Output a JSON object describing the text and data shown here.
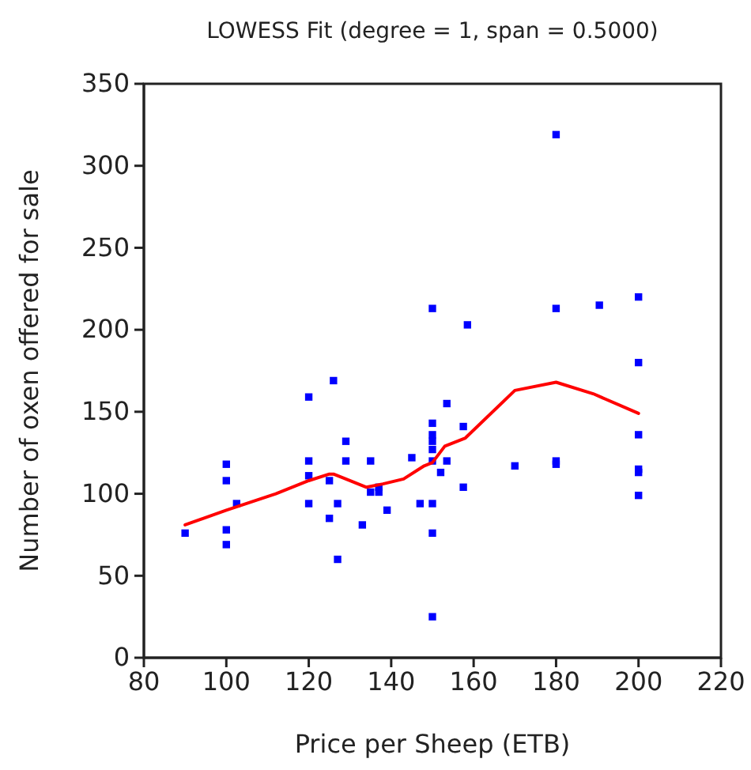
{
  "chart_data": {
    "type": "scatter",
    "title": "LOWESS Fit (degree = 1, span = 0.5000)",
    "xlabel": "Price per Sheep (ETB)",
    "ylabel": "Number of oxen offered for sale",
    "xlim": [
      80,
      220
    ],
    "ylim": [
      0,
      350
    ],
    "xticks": [
      80,
      100,
      120,
      140,
      160,
      180,
      200,
      220
    ],
    "yticks": [
      0,
      50,
      100,
      150,
      200,
      250,
      300,
      350
    ],
    "grid": false,
    "marker": "square",
    "series": [
      {
        "color": "#0000ff",
        "x": [
          90,
          100,
          100,
          100,
          100,
          102.5,
          120,
          120,
          120,
          120,
          125,
          125,
          126,
          127,
          127,
          129,
          129,
          133,
          135,
          135,
          137,
          137,
          139,
          145,
          147,
          150,
          150,
          150,
          150,
          150,
          150,
          150,
          150,
          150,
          152,
          153.5,
          153.5,
          157.5,
          157.5,
          158.5,
          170,
          180,
          180,
          180,
          180,
          190.5,
          200,
          200,
          200,
          200,
          200,
          200
        ],
        "values": [
          76,
          118,
          108,
          78,
          69,
          94,
          159,
          120,
          111,
          94,
          85,
          108,
          169,
          94,
          60,
          132,
          120,
          81,
          120,
          101,
          104,
          101,
          90,
          122,
          94,
          213,
          143,
          136,
          132,
          127,
          120,
          94,
          76,
          25,
          113,
          155,
          120,
          141,
          104,
          203,
          117,
          319,
          213,
          120,
          118,
          215,
          220,
          180,
          136,
          115,
          113,
          99
        ]
      },
      {
        "type": "line",
        "color": "#ff0000",
        "marker": "none",
        "line_style": "solid",
        "x": [
          90,
          100,
          112,
          120,
          125,
          126,
          129,
          134,
          138,
          143,
          148,
          150,
          153,
          158,
          170,
          180,
          189,
          200
        ],
        "values": [
          81,
          90,
          100,
          108,
          112,
          112,
          109,
          104,
          106,
          109,
          117,
          119,
          129,
          134,
          163,
          168,
          161,
          149
        ]
      }
    ]
  }
}
